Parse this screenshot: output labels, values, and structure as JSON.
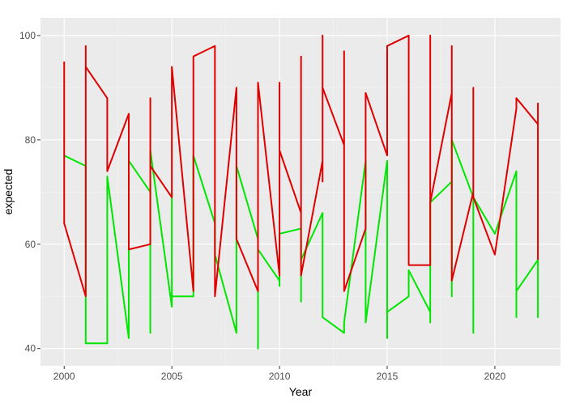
{
  "chart_data": {
    "type": "line",
    "x_label": "Year",
    "y_label": "expected",
    "xlim": [
      1998.9,
      2023.05
    ],
    "ylim": [
      36.7,
      103.4
    ],
    "xticks": [
      2000,
      2005,
      2010,
      2015,
      2020
    ],
    "yticks": [
      40,
      60,
      80,
      100
    ],
    "grid": true,
    "series": [
      {
        "color": "#00e600",
        "x": [
          2000,
          2001,
          2001,
          2002,
          2002,
          2003,
          2003,
          2004,
          2004,
          2004,
          2005,
          2005,
          2005,
          2006,
          2006,
          2007,
          2007,
          2008,
          2008,
          2009,
          2009,
          2009,
          2010,
          2010,
          2010,
          2011,
          2011,
          2011,
          2012,
          2012,
          2013,
          2013,
          2014,
          2014,
          2015,
          2015,
          2015,
          2016,
          2016,
          2017,
          2017,
          2017,
          2018,
          2018,
          2018,
          2019,
          2019,
          2019,
          2020,
          2021,
          2021,
          2021,
          2022,
          2022,
          2022
        ],
        "values": [
          77,
          75,
          41,
          41,
          73,
          42,
          76,
          70,
          43,
          78,
          48,
          70,
          50,
          50,
          77,
          64,
          58,
          43,
          75,
          61,
          40,
          59,
          53,
          52,
          62,
          63,
          49,
          57,
          66,
          46,
          43,
          45,
          76,
          45,
          76,
          42,
          47,
          50,
          55,
          47,
          45,
          68,
          72,
          50,
          80,
          69,
          43,
          69,
          62,
          74,
          46,
          51,
          57,
          46,
          55
        ]
      },
      {
        "color": "#e00000",
        "x": [
          2000,
          2000,
          2001,
          2001,
          2001,
          2002,
          2002,
          2003,
          2003,
          2004,
          2004,
          2004,
          2005,
          2005,
          2006,
          2006,
          2007,
          2007,
          2008,
          2008,
          2009,
          2009,
          2010,
          2010,
          2010,
          2011,
          2011,
          2011,
          2012,
          2012,
          2012,
          2012,
          2013,
          2013,
          2013,
          2014,
          2014,
          2015,
          2015,
          2016,
          2016,
          2017,
          2017,
          2017,
          2018,
          2018,
          2018,
          2019,
          2019,
          2019,
          2020,
          2021,
          2021,
          2022,
          2022,
          2022
        ],
        "values": [
          95,
          64,
          50,
          98,
          94,
          88,
          74,
          85,
          59,
          60,
          88,
          75,
          69,
          94,
          51,
          96,
          98,
          50,
          90,
          61,
          51,
          91,
          54,
          91,
          78,
          66,
          96,
          54,
          76,
          72,
          100,
          90,
          79,
          97,
          51,
          63,
          89,
          77,
          98,
          100,
          56,
          56,
          100,
          68,
          89,
          98,
          53,
          70,
          90,
          69,
          58,
          86,
          88,
          83,
          87,
          57
        ]
      }
    ]
  }
}
